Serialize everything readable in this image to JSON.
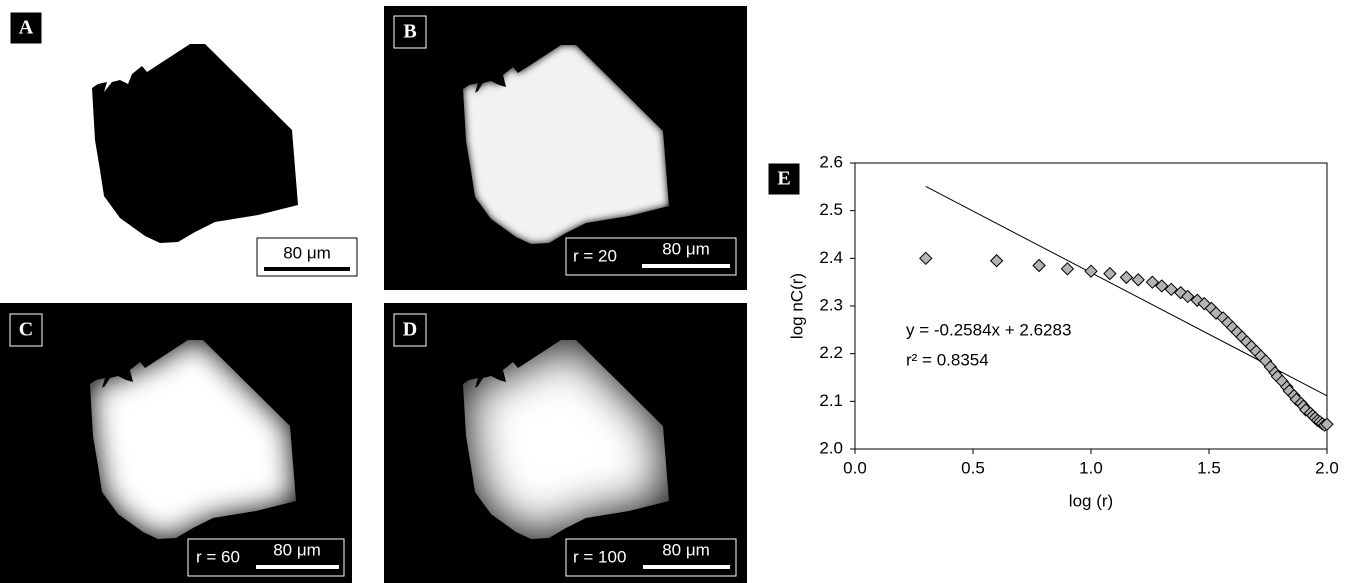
{
  "panels": [
    {
      "label": "A",
      "scale_bar": "80 μm"
    },
    {
      "label": "B",
      "radius": "r = 20",
      "scale_bar": "80 μm"
    },
    {
      "label": "C",
      "radius": "r = 60",
      "scale_bar": "80 μm"
    },
    {
      "label": "D",
      "radius": "r = 100",
      "scale_bar": "80 μm"
    }
  ],
  "chart_data": {
    "type": "scatter",
    "panel_label": "E",
    "x_label": "log (r)",
    "y_label": "log nC(r)",
    "annotations": [
      "y = -0.2584x + 2.6283",
      "r² = 0.8354"
    ],
    "trendline": {
      "slope": -0.2584,
      "intercept": 2.6283,
      "x": [
        0.3,
        2.0
      ]
    },
    "color": "#b3b3b3",
    "x": [
      0.3,
      0.6,
      0.78,
      0.9,
      1.0,
      1.08,
      1.15,
      1.2,
      1.26,
      1.3,
      1.34,
      1.38,
      1.41,
      1.45,
      1.48,
      1.51,
      1.53,
      1.56,
      1.58,
      1.6,
      1.62,
      1.64,
      1.66,
      1.68,
      1.7,
      1.72,
      1.74,
      1.76,
      1.78,
      1.79,
      1.81,
      1.83,
      1.84,
      1.86,
      1.87,
      1.89,
      1.9,
      1.91,
      1.93,
      1.94,
      1.95,
      1.96,
      1.97,
      1.98,
      1.99,
      2.0
    ],
    "values": [
      2.4,
      2.395,
      2.385,
      2.378,
      2.373,
      2.368,
      2.36,
      2.355,
      2.35,
      2.342,
      2.335,
      2.328,
      2.32,
      2.312,
      2.305,
      2.295,
      2.285,
      2.275,
      2.265,
      2.255,
      2.245,
      2.235,
      2.225,
      2.215,
      2.205,
      2.195,
      2.185,
      2.172,
      2.16,
      2.152,
      2.142,
      2.13,
      2.122,
      2.112,
      2.104,
      2.096,
      2.09,
      2.082,
      2.075,
      2.07,
      2.065,
      2.06,
      2.057,
      2.053,
      2.05,
      2.052
    ],
    "xlim": [
      0,
      2
    ],
    "ylim": [
      2,
      2.6
    ],
    "xticks": [
      {
        "value": 0,
        "label": "0.0"
      },
      0.5,
      {
        "value": 1,
        "label": "1.0"
      },
      1.5,
      {
        "value": 2,
        "label": "2.0"
      }
    ],
    "yticks": [
      {
        "value": 2,
        "label": "2.0"
      },
      2.1,
      2.2,
      2.3,
      2.4,
      2.5,
      2.6
    ]
  }
}
